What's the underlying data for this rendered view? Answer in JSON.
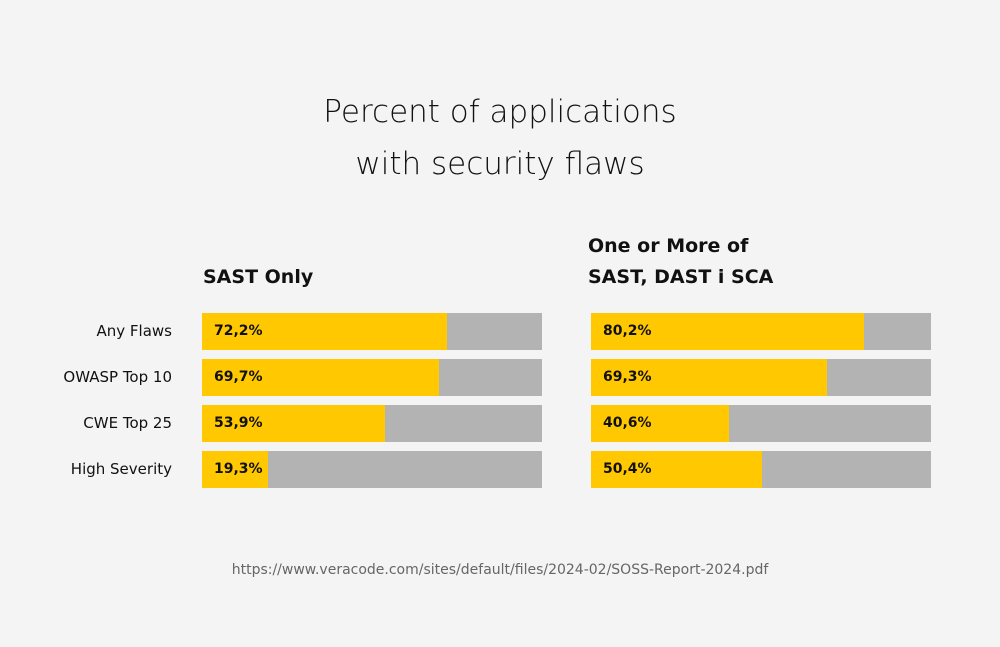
{
  "colors": {
    "background": "#f4f4f4",
    "bar_fill": "#ffc800",
    "bar_track": "#b3b3b3",
    "text": "#111111",
    "source_text": "#666666"
  },
  "chart_data": {
    "type": "bar",
    "orientation": "horizontal",
    "stacked_to_100": true,
    "title": [
      "Percent of applications",
      "with security flaws"
    ],
    "categories": [
      "Any Flaws",
      "OWASP Top 10",
      "CWE Top 25",
      "High Severity"
    ],
    "value_unit": "%",
    "ylim": [
      0,
      100
    ],
    "panels": [
      {
        "title": [
          "SAST Only"
        ],
        "values": [
          72.2,
          69.7,
          53.9,
          19.3
        ],
        "labels": [
          "72,2%",
          "69,7%",
          "53,9%",
          "19,3%"
        ]
      },
      {
        "title": [
          "One or More of",
          "SAST, DAST i SCA"
        ],
        "values": [
          80.2,
          69.3,
          40.6,
          50.4
        ],
        "labels": [
          "80,2%",
          "69,3%",
          "40,6%",
          "50,4%"
        ]
      }
    ],
    "source": "https://www.veracode.com/sites/default/files/2024-02/SOSS-Report-2024.pdf"
  }
}
